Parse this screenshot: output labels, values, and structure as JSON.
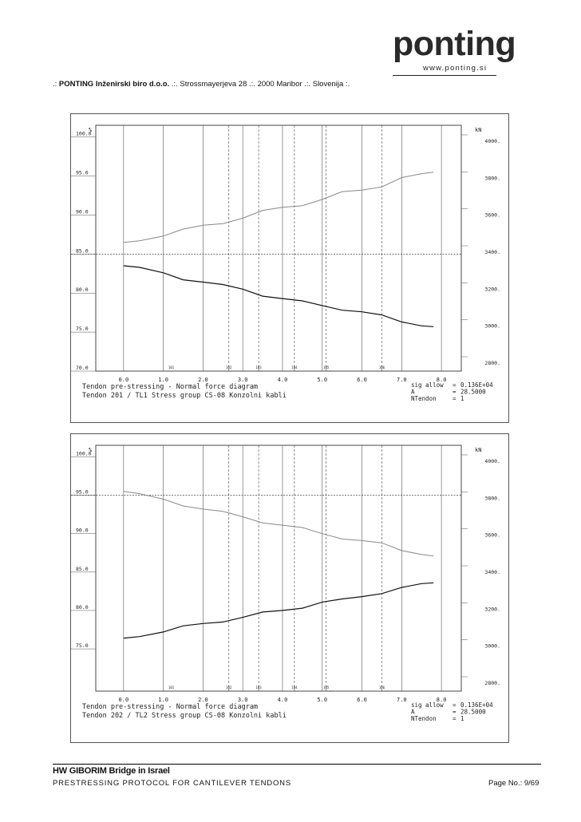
{
  "header": {
    "prefix": ".: ",
    "company": "PONTING Inženirski biro d.o.o.",
    "address": " .:. Strossmayerjeva 28 .:. 2000 Maribor .:. Slovenija :.",
    "logo_word": "ponting",
    "logo_url": "www.ponting.si"
  },
  "footer": {
    "title": "HW GIBORIM Bridge in Israel",
    "subtitle": "PRESTRESSING PROTOCOL FOR CANTILEVER TENDONS",
    "page": "Page No.: 9/69"
  },
  "chart_data": [
    {
      "type": "line",
      "left_unit": "%",
      "right_unit": "kN",
      "left_ticks": [
        "100.0",
        "95.0",
        "90.0",
        "85.0",
        "80.0",
        "75.0",
        "70.0"
      ],
      "left_range": [
        70,
        101.5
      ],
      "right_ticks": [
        "4000.",
        "3800.",
        "3600.",
        "3400.",
        "3200.",
        "3000.",
        "2800."
      ],
      "x_ticks": [
        "0.0",
        "1.0",
        "2.0",
        "3.0",
        "4.0",
        "5.0",
        "6.0",
        "7.0",
        "8.0"
      ],
      "x_range": [
        -0.7,
        8.5
      ],
      "dashed_level": 85,
      "section_labels": [
        "101",
        "102",
        "103",
        "104",
        "105",
        "106"
      ],
      "section_x": [
        1.2,
        2.65,
        3.4,
        4.3,
        5.1,
        6.5
      ],
      "dashed_sections": [
        2.65,
        3.4,
        4.3,
        5.1,
        6.5
      ],
      "series": [
        {
          "color": "#888888",
          "x": [
            0,
            0.4,
            1.0,
            1.5,
            2.0,
            2.5,
            3.0,
            3.5,
            4.0,
            4.5,
            5.0,
            5.5,
            6.0,
            6.5,
            7.0,
            7.5,
            7.8
          ],
          "values": [
            86.5,
            86.7,
            87.3,
            88.2,
            88.7,
            88.9,
            89.6,
            90.6,
            91.0,
            91.2,
            92.0,
            93.0,
            93.2,
            93.6,
            94.8,
            95.3,
            95.5
          ]
        },
        {
          "color": "#111111",
          "x": [
            0,
            0.4,
            1.0,
            1.5,
            2.0,
            2.5,
            3.0,
            3.5,
            4.0,
            4.5,
            5.0,
            5.5,
            6.0,
            6.5,
            7.0,
            7.5,
            7.8
          ],
          "values": [
            83.5,
            83.3,
            82.6,
            81.7,
            81.4,
            81.1,
            80.5,
            79.6,
            79.3,
            79.0,
            78.4,
            77.8,
            77.6,
            77.2,
            76.3,
            75.8,
            75.7
          ]
        }
      ],
      "caption": {
        "line1": "Tendon pre-stressing   -  Normal force diagram",
        "line2": "Tendon   201 / TL1     Stress group CS-08     Konzolni kabli",
        "param_lines": [
          [
            "sig allow",
            "=",
            "0.136E+04"
          ],
          [
            "A",
            "=",
            "28.5000"
          ],
          [
            "NTendon",
            "=",
            "1"
          ]
        ]
      }
    },
    {
      "type": "line",
      "left_unit": "%",
      "right_unit": "kN",
      "left_ticks": [
        "100.0",
        "95.0",
        "90.0",
        "85.0",
        "80.0",
        "75.0"
      ],
      "left_range": [
        69.5,
        101.5
      ],
      "right_ticks": [
        "4000.",
        "3800.",
        "3600.",
        "3400.",
        "3200.",
        "3000.",
        "2800."
      ],
      "x_ticks": [
        "0.0",
        "1.0",
        "2.0",
        "3.0",
        "4.0",
        "5.0",
        "6.0",
        "7.0",
        "8.0"
      ],
      "x_range": [
        -0.7,
        8.5
      ],
      "dashed_level": 95,
      "section_labels": [
        "101",
        "102",
        "103",
        "104",
        "105",
        "106"
      ],
      "section_x": [
        1.2,
        2.65,
        3.4,
        4.3,
        5.1,
        6.5
      ],
      "dashed_sections": [
        2.65,
        3.4,
        4.3,
        5.1,
        6.5
      ],
      "series": [
        {
          "color": "#888888",
          "x": [
            0,
            0.4,
            1.0,
            1.5,
            2.0,
            2.5,
            3.0,
            3.5,
            4.0,
            4.5,
            5.0,
            5.5,
            6.0,
            6.5,
            7.0,
            7.5,
            7.8
          ],
          "values": [
            95.5,
            95.2,
            94.5,
            93.6,
            93.2,
            92.9,
            92.2,
            91.4,
            91.1,
            90.8,
            90.0,
            89.3,
            89.1,
            88.8,
            87.8,
            87.3,
            87.1
          ]
        },
        {
          "color": "#111111",
          "x": [
            0,
            0.4,
            1.0,
            1.5,
            2.0,
            2.5,
            3.0,
            3.5,
            4.0,
            4.5,
            5.0,
            5.5,
            6.0,
            6.5,
            7.0,
            7.5,
            7.8
          ],
          "values": [
            76.4,
            76.6,
            77.2,
            78.0,
            78.3,
            78.5,
            79.1,
            79.8,
            80.0,
            80.3,
            81.1,
            81.5,
            81.8,
            82.2,
            83.0,
            83.5,
            83.6
          ]
        }
      ],
      "caption": {
        "line1": "Tendon pre-stressing   -  Normal force diagram",
        "line2": "Tendon   202 / TL2     Stress group CS-08     Konzolni kabli",
        "param_lines": [
          [
            "sig allow",
            "=",
            "0.136E+04"
          ],
          [
            "A",
            "=",
            "28.5000"
          ],
          [
            "NTendon",
            "=",
            "1"
          ]
        ]
      }
    }
  ]
}
